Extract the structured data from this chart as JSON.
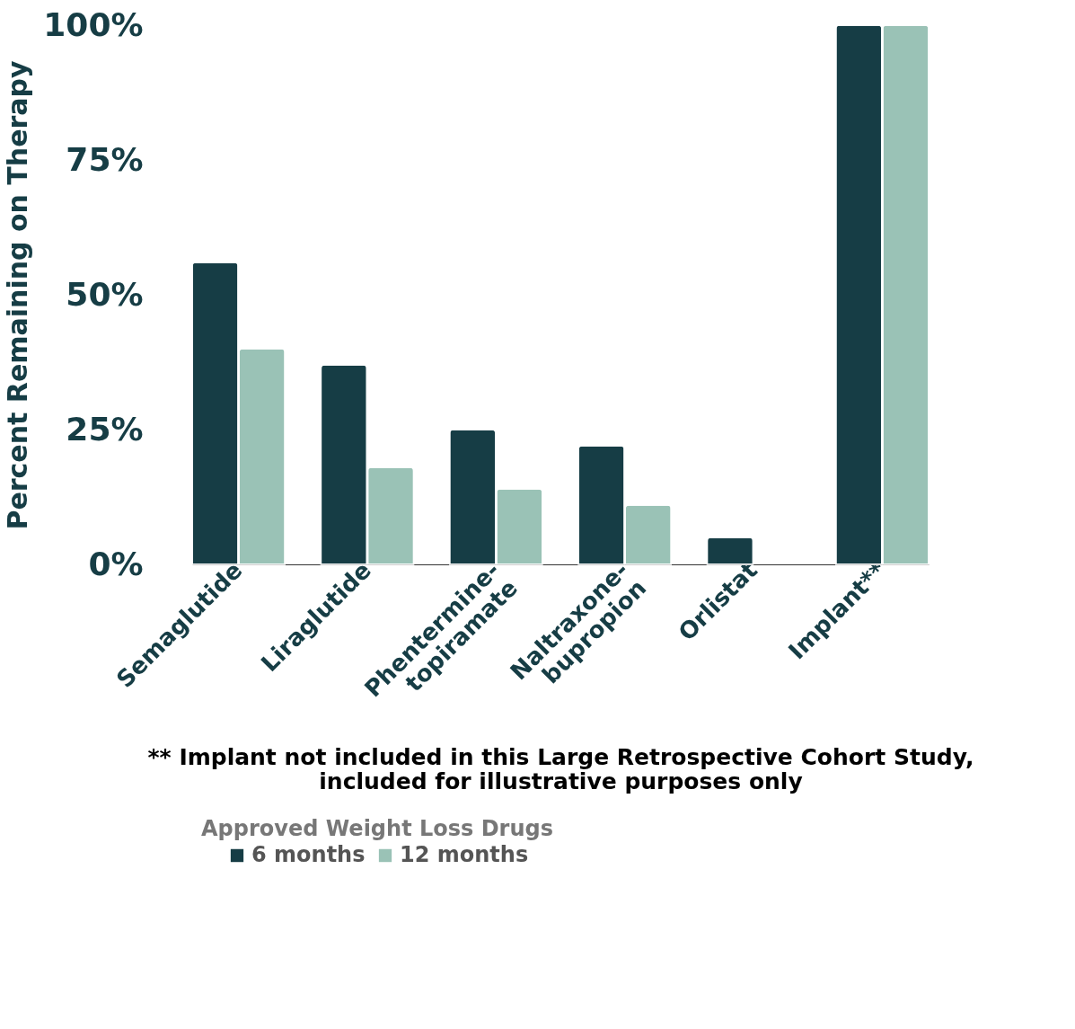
{
  "chart_data": {
    "type": "bar",
    "ylabel": "Percent Remaining on Therapy",
    "categories": [
      "Semaglutide",
      "Liraglutide",
      "Phentermine-\ntopiramate",
      "Naltraxone-\nbupropion",
      "Orlistat",
      "Implant**"
    ],
    "series": [
      {
        "name": "6 months",
        "color": "#163d45",
        "values": [
          56,
          37,
          25,
          22,
          5,
          100
        ]
      },
      {
        "name": "12 months",
        "color": "#9ac2b6",
        "values": [
          40,
          18,
          14,
          11,
          null,
          100
        ]
      }
    ],
    "ylim": [
      0,
      100
    ],
    "yticks": [
      {
        "value": 0,
        "label": "0%"
      },
      {
        "value": 25,
        "label": "25%"
      },
      {
        "value": 50,
        "label": "50%"
      },
      {
        "value": 75,
        "label": "75%"
      },
      {
        "value": 100,
        "label": "100%"
      }
    ],
    "grid": false,
    "legend": "bottom",
    "legend_title": "Approved Weight Loss Drugs",
    "annotations": [
      "** Implant not included in this Large Retrospective Cohort Study, included for illustrative purposes only"
    ]
  }
}
